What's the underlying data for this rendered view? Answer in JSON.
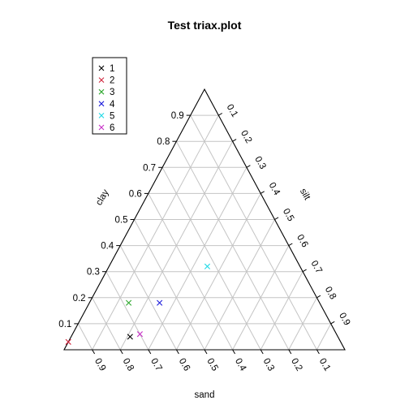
{
  "chart_data": {
    "type": "scatter",
    "subtype": "ternary",
    "title": "Test triax.plot",
    "axes": {
      "left": {
        "label": "clay",
        "ticks": [
          "0.1",
          "0.2",
          "0.3",
          "0.4",
          "0.5",
          "0.6",
          "0.7",
          "0.8",
          "0.9"
        ]
      },
      "right": {
        "label": "silt",
        "ticks": [
          "0.1",
          "0.2",
          "0.3",
          "0.4",
          "0.5",
          "0.6",
          "0.7",
          "0.8",
          "0.9"
        ]
      },
      "bottom": {
        "label": "sand",
        "ticks": [
          "0.9",
          "0.8",
          "0.7",
          "0.6",
          "0.5",
          "0.4",
          "0.3",
          "0.2",
          "0.1"
        ]
      }
    },
    "grid": true,
    "legend_position": "top-left",
    "series": [
      {
        "name": "1",
        "color": "#000000",
        "marker": "x",
        "sand": 0.74,
        "silt": 0.21,
        "clay": 0.05
      },
      {
        "name": "2",
        "color": "#d0253d",
        "marker": "x",
        "sand": 0.97,
        "silt": 0.0,
        "clay": 0.03
      },
      {
        "name": "3",
        "color": "#2fa82f",
        "marker": "x",
        "sand": 0.68,
        "silt": 0.14,
        "clay": 0.18
      },
      {
        "name": "4",
        "color": "#1e1edb",
        "marker": "x",
        "sand": 0.57,
        "silt": 0.25,
        "clay": 0.18
      },
      {
        "name": "5",
        "color": "#1fd9e6",
        "marker": "x",
        "sand": 0.33,
        "silt": 0.35,
        "clay": 0.32
      },
      {
        "name": "6",
        "color": "#c72fc7",
        "marker": "x",
        "sand": 0.7,
        "silt": 0.24,
        "clay": 0.06
      }
    ]
  }
}
